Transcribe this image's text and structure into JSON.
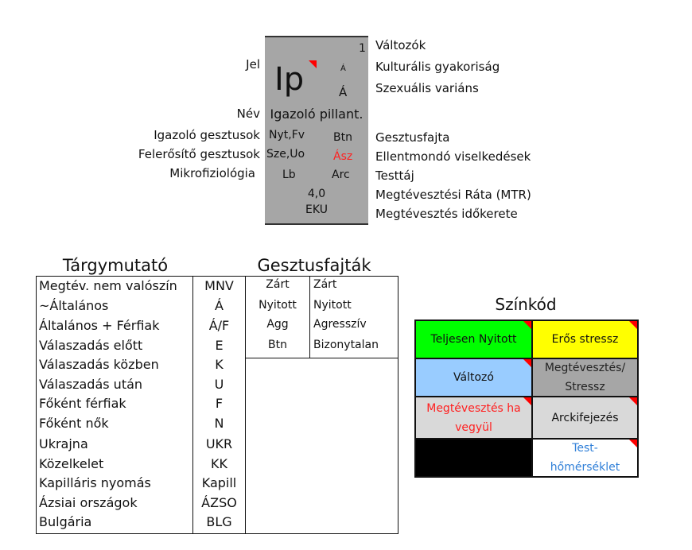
{
  "card": {
    "number": "1",
    "symbol": "Ip",
    "cultural": "Á",
    "sexual": "Á",
    "name": "Igazoló pillant.",
    "confirm": "Nyt,Fv",
    "gesture_type": "Btn",
    "amplify": "Sze,Uo",
    "contradict": "Ász",
    "microphys": "Lb",
    "body_area": "Arc",
    "mtr": "4,0",
    "timeframe": "EKU",
    "accent": "#ff0000",
    "bg": "#a6a6a6"
  },
  "left_labels": {
    "jel": "Jel",
    "nev": "Név",
    "igazolo": "Igazoló gesztusok",
    "felerosito": "Felerősítő gesztusok",
    "mikro": "Mikrofiziológia"
  },
  "right_labels": [
    "Változók",
    "Kulturális gyakoriság",
    "Szexuális variáns",
    "Gesztusfajta",
    "Ellentmondó viselkedések",
    "Testtáj",
    "Megtévesztési Ráta (MTR)",
    "Megtévesztés időkerete"
  ],
  "index": {
    "title": "Tárgymutató",
    "rows": [
      [
        "Megtév. nem valószín",
        "MNV"
      ],
      [
        "~Általános",
        "Á"
      ],
      [
        "Általános + Férfiak",
        "Á/F"
      ],
      [
        "Válaszadás előtt",
        "E"
      ],
      [
        "Válaszadás közben",
        "K"
      ],
      [
        "Válaszadás után",
        "U"
      ],
      [
        "Főként férfiak",
        "F"
      ],
      [
        "Főként nők",
        "N"
      ],
      [
        "Ukrajna",
        "UKR"
      ],
      [
        "Közelkelet",
        "KK"
      ],
      [
        "Kapilláris nyomás",
        "Kapill"
      ],
      [
        "Ázsiai országok",
        "ÁZSO"
      ],
      [
        "Bulgária",
        "BLG"
      ]
    ]
  },
  "gestures": {
    "title": "Gesztusfajták",
    "rows": [
      [
        "Zárt",
        "Zárt"
      ],
      [
        "Nyitott",
        "Nyitott"
      ],
      [
        "Agg",
        "Agresszív"
      ],
      [
        "Btn",
        "Bizonytalan"
      ]
    ]
  },
  "colorcode": {
    "title": "Színkód",
    "cells": [
      {
        "label": "Teljesen Nyitott",
        "bg": "#00ff00",
        "fg": "#111111"
      },
      {
        "label": "Erős stressz",
        "bg": "#ffff00",
        "fg": "#111111"
      },
      {
        "label": "Változó",
        "bg": "#99ccff",
        "fg": "#111111"
      },
      {
        "label": "Megtévesztés/ Stressz",
        "bg": "#a6a6a6",
        "fg": "#222222"
      },
      {
        "label": "Megtévesztés ha vegyül",
        "bg": "#d9d9d9",
        "fg": "#ff2020"
      },
      {
        "label": "Arckifejezés",
        "bg": "#d9d9d9",
        "fg": "#111111"
      },
      {
        "label": "",
        "bg": "#000000",
        "fg": "#ffffff"
      },
      {
        "label": "Test- hőmérséklet",
        "bg": "#ffffff",
        "fg": "#2f7fd8"
      }
    ]
  }
}
